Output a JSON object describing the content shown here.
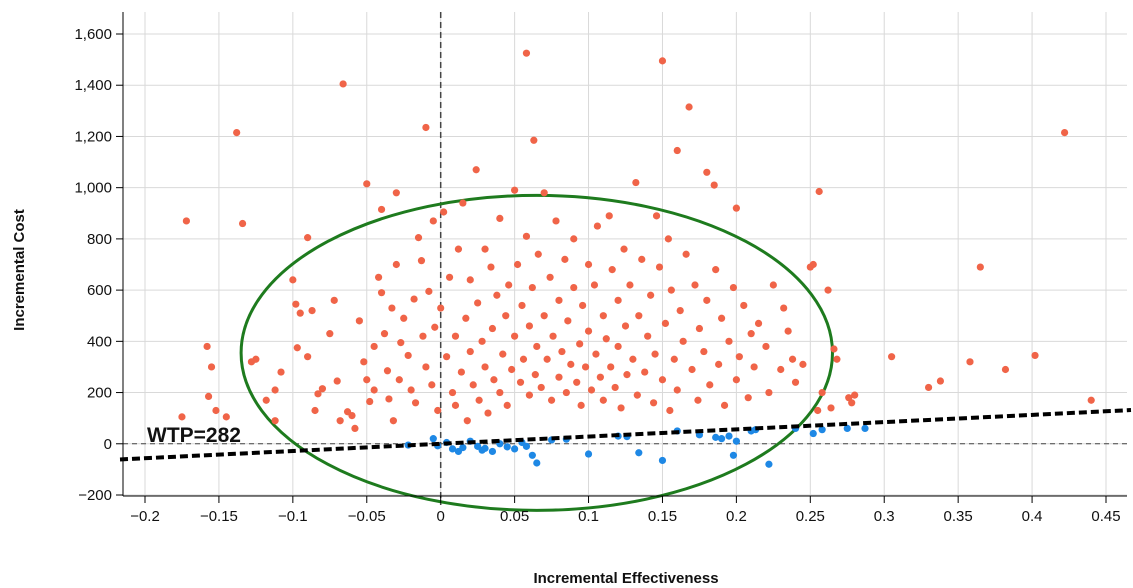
{
  "chart_data": {
    "type": "scatter",
    "title": "",
    "xlabel": "Incremental Effectiveness",
    "ylabel": "Incremental Cost",
    "xlim": [
      -0.2,
      0.45
    ],
    "ylim": [
      -200,
      1600
    ],
    "x_ticks": [
      -0.2,
      -0.15,
      -0.1,
      -0.05,
      0,
      0.05,
      0.1,
      0.15,
      0.2,
      0.25,
      0.3,
      0.35,
      0.4,
      0.45
    ],
    "x_tick_labels": [
      "−0.2",
      "−0.15",
      "−0.1",
      "−0.05",
      "0",
      "0.05",
      "0.1",
      "0.15",
      "0.2",
      "0.25",
      "0.3",
      "0.35",
      "0.4",
      "0.45"
    ],
    "y_ticks": [
      -200,
      0,
      200,
      400,
      600,
      800,
      1000,
      1200,
      1400,
      1600
    ],
    "y_tick_labels": [
      "−200",
      "0",
      "200",
      "400",
      "600",
      "800",
      "1,000",
      "1,200",
      "1,400",
      "1,600"
    ],
    "grid": true,
    "wtp": {
      "label": "WTP=282",
      "slope": 282,
      "x_range": [
        -0.2,
        0.45
      ]
    },
    "confidence_ellipse": {
      "center": [
        0.065,
        355
      ],
      "semi_axes": [
        0.2,
        615
      ],
      "color": "#1e7b1e"
    },
    "colors": {
      "above_wtp": "#f06448",
      "below_wtp": "#1e88e5",
      "grid": "#d9d9d9",
      "wtp_line": "#000000",
      "zero_lines": "#444444"
    },
    "series": [
      {
        "color_key": "above_wtp",
        "points": [
          [
            -0.172,
            870
          ],
          [
            -0.175,
            105
          ],
          [
            -0.158,
            380
          ],
          [
            -0.155,
            300
          ],
          [
            -0.157,
            185
          ],
          [
            -0.152,
            130
          ],
          [
            -0.145,
            105
          ],
          [
            -0.138,
            1215
          ],
          [
            -0.134,
            860
          ],
          [
            -0.128,
            320
          ],
          [
            -0.125,
            330
          ],
          [
            -0.118,
            170
          ],
          [
            -0.112,
            210
          ],
          [
            -0.112,
            90
          ],
          [
            -0.108,
            280
          ],
          [
            -0.1,
            640
          ],
          [
            -0.098,
            545
          ],
          [
            -0.097,
            375
          ],
          [
            -0.095,
            510
          ],
          [
            -0.09,
            805
          ],
          [
            -0.09,
            340
          ],
          [
            -0.087,
            520
          ],
          [
            -0.085,
            130
          ],
          [
            -0.083,
            195
          ],
          [
            -0.08,
            215
          ],
          [
            -0.075,
            430
          ],
          [
            -0.072,
            560
          ],
          [
            -0.07,
            245
          ],
          [
            -0.068,
            90
          ],
          [
            -0.066,
            1405
          ],
          [
            -0.063,
            125
          ],
          [
            -0.06,
            110
          ],
          [
            -0.058,
            60
          ],
          [
            -0.055,
            480
          ],
          [
            -0.052,
            320
          ],
          [
            -0.05,
            1015
          ],
          [
            -0.05,
            250
          ],
          [
            -0.048,
            165
          ],
          [
            -0.045,
            210
          ],
          [
            -0.045,
            380
          ],
          [
            -0.042,
            650
          ],
          [
            -0.04,
            590
          ],
          [
            -0.04,
            915
          ],
          [
            -0.038,
            430
          ],
          [
            -0.036,
            285
          ],
          [
            -0.035,
            175
          ],
          [
            -0.033,
            530
          ],
          [
            -0.032,
            90
          ],
          [
            -0.03,
            980
          ],
          [
            -0.03,
            700
          ],
          [
            -0.028,
            250
          ],
          [
            -0.027,
            395
          ],
          [
            -0.025,
            490
          ],
          [
            -0.022,
            345
          ],
          [
            -0.02,
            210
          ],
          [
            -0.018,
            565
          ],
          [
            -0.017,
            160
          ],
          [
            -0.015,
            805
          ],
          [
            -0.013,
            715
          ],
          [
            -0.012,
            420
          ],
          [
            -0.01,
            1235
          ],
          [
            -0.01,
            300
          ],
          [
            -0.008,
            595
          ],
          [
            -0.006,
            230
          ],
          [
            -0.005,
            870
          ],
          [
            -0.004,
            455
          ],
          [
            -0.002,
            130
          ],
          [
            0.0,
            530
          ],
          [
            0.002,
            905
          ],
          [
            0.004,
            340
          ],
          [
            0.006,
            650
          ],
          [
            0.008,
            200
          ],
          [
            0.01,
            420
          ],
          [
            0.01,
            150
          ],
          [
            0.012,
            760
          ],
          [
            0.014,
            280
          ],
          [
            0.015,
            940
          ],
          [
            0.017,
            490
          ],
          [
            0.018,
            90
          ],
          [
            0.02,
            360
          ],
          [
            0.02,
            640
          ],
          [
            0.022,
            230
          ],
          [
            0.024,
            1070
          ],
          [
            0.025,
            550
          ],
          [
            0.026,
            170
          ],
          [
            0.028,
            400
          ],
          [
            0.03,
            760
          ],
          [
            0.03,
            300
          ],
          [
            0.032,
            120
          ],
          [
            0.034,
            690
          ],
          [
            0.035,
            450
          ],
          [
            0.036,
            250
          ],
          [
            0.038,
            580
          ],
          [
            0.04,
            200
          ],
          [
            0.04,
            880
          ],
          [
            0.042,
            350
          ],
          [
            0.044,
            500
          ],
          [
            0.045,
            150
          ],
          [
            0.046,
            620
          ],
          [
            0.048,
            290
          ],
          [
            0.05,
            990
          ],
          [
            0.05,
            420
          ],
          [
            0.052,
            700
          ],
          [
            0.054,
            240
          ],
          [
            0.055,
            540
          ],
          [
            0.056,
            330
          ],
          [
            0.058,
            1525
          ],
          [
            0.058,
            810
          ],
          [
            0.06,
            190
          ],
          [
            0.06,
            460
          ],
          [
            0.062,
            610
          ],
          [
            0.063,
            1185
          ],
          [
            0.064,
            270
          ],
          [
            0.065,
            380
          ],
          [
            0.066,
            740
          ],
          [
            0.068,
            220
          ],
          [
            0.07,
            980
          ],
          [
            0.07,
            500
          ],
          [
            0.072,
            330
          ],
          [
            0.074,
            650
          ],
          [
            0.075,
            170
          ],
          [
            0.076,
            420
          ],
          [
            0.078,
            870
          ],
          [
            0.08,
            260
          ],
          [
            0.08,
            560
          ],
          [
            0.082,
            360
          ],
          [
            0.084,
            720
          ],
          [
            0.085,
            200
          ],
          [
            0.086,
            480
          ],
          [
            0.088,
            310
          ],
          [
            0.09,
            800
          ],
          [
            0.09,
            610
          ],
          [
            0.092,
            240
          ],
          [
            0.094,
            390
          ],
          [
            0.095,
            150
          ],
          [
            0.096,
            540
          ],
          [
            0.098,
            300
          ],
          [
            0.1,
            700
          ],
          [
            0.1,
            440
          ],
          [
            0.102,
            210
          ],
          [
            0.104,
            620
          ],
          [
            0.105,
            350
          ],
          [
            0.106,
            850
          ],
          [
            0.108,
            260
          ],
          [
            0.11,
            500
          ],
          [
            0.11,
            170
          ],
          [
            0.112,
            410
          ],
          [
            0.114,
            890
          ],
          [
            0.115,
            300
          ],
          [
            0.116,
            680
          ],
          [
            0.118,
            220
          ],
          [
            0.12,
            560
          ],
          [
            0.12,
            380
          ],
          [
            0.122,
            140
          ],
          [
            0.124,
            760
          ],
          [
            0.125,
            460
          ],
          [
            0.126,
            270
          ],
          [
            0.128,
            620
          ],
          [
            0.13,
            330
          ],
          [
            0.132,
            1020
          ],
          [
            0.133,
            190
          ],
          [
            0.134,
            500
          ],
          [
            0.136,
            720
          ],
          [
            0.138,
            280
          ],
          [
            0.14,
            420
          ],
          [
            0.142,
            580
          ],
          [
            0.144,
            160
          ],
          [
            0.145,
            350
          ],
          [
            0.146,
            890
          ],
          [
            0.148,
            690
          ],
          [
            0.15,
            1495
          ],
          [
            0.15,
            250
          ],
          [
            0.152,
            470
          ],
          [
            0.154,
            800
          ],
          [
            0.155,
            130
          ],
          [
            0.156,
            600
          ],
          [
            0.158,
            330
          ],
          [
            0.16,
            1145
          ],
          [
            0.16,
            210
          ],
          [
            0.162,
            520
          ],
          [
            0.164,
            400
          ],
          [
            0.166,
            740
          ],
          [
            0.168,
            1315
          ],
          [
            0.17,
            290
          ],
          [
            0.172,
            620
          ],
          [
            0.174,
            170
          ],
          [
            0.175,
            450
          ],
          [
            0.178,
            360
          ],
          [
            0.18,
            1060
          ],
          [
            0.18,
            560
          ],
          [
            0.182,
            230
          ],
          [
            0.185,
            1010
          ],
          [
            0.186,
            680
          ],
          [
            0.188,
            310
          ],
          [
            0.19,
            490
          ],
          [
            0.192,
            150
          ],
          [
            0.195,
            400
          ],
          [
            0.198,
            610
          ],
          [
            0.2,
            250
          ],
          [
            0.2,
            920
          ],
          [
            0.202,
            340
          ],
          [
            0.205,
            540
          ],
          [
            0.208,
            180
          ],
          [
            0.21,
            430
          ],
          [
            0.212,
            300
          ],
          [
            0.215,
            470
          ],
          [
            0.22,
            380
          ],
          [
            0.222,
            200
          ],
          [
            0.225,
            620
          ],
          [
            0.23,
            290
          ],
          [
            0.232,
            530
          ],
          [
            0.235,
            440
          ],
          [
            0.238,
            330
          ],
          [
            0.24,
            240
          ],
          [
            0.245,
            310
          ],
          [
            0.25,
            690
          ],
          [
            0.252,
            700
          ],
          [
            0.255,
            130
          ],
          [
            0.256,
            985
          ],
          [
            0.258,
            200
          ],
          [
            0.262,
            600
          ],
          [
            0.264,
            140
          ],
          [
            0.266,
            370
          ],
          [
            0.268,
            330
          ],
          [
            0.276,
            180
          ],
          [
            0.278,
            160
          ],
          [
            0.28,
            190
          ],
          [
            0.305,
            340
          ],
          [
            0.33,
            220
          ],
          [
            0.338,
            245
          ],
          [
            0.358,
            320
          ],
          [
            0.365,
            690
          ],
          [
            0.382,
            290
          ],
          [
            0.402,
            345
          ],
          [
            0.422,
            1215
          ],
          [
            0.44,
            170
          ]
        ]
      },
      {
        "color_key": "below_wtp",
        "points": [
          [
            -0.022,
            -5
          ],
          [
            -0.005,
            20
          ],
          [
            -0.002,
            -8
          ],
          [
            0.004,
            5
          ],
          [
            0.008,
            -20
          ],
          [
            0.012,
            -30
          ],
          [
            0.015,
            -15
          ],
          [
            0.02,
            10
          ],
          [
            0.025,
            -10
          ],
          [
            0.028,
            -25
          ],
          [
            0.03,
            -18
          ],
          [
            0.035,
            -30
          ],
          [
            0.04,
            0
          ],
          [
            0.045,
            -12
          ],
          [
            0.05,
            -20
          ],
          [
            0.055,
            5
          ],
          [
            0.058,
            -10
          ],
          [
            0.062,
            -45
          ],
          [
            0.065,
            -75
          ],
          [
            0.075,
            15
          ],
          [
            0.085,
            18
          ],
          [
            0.1,
            -40
          ],
          [
            0.12,
            30
          ],
          [
            0.126,
            28
          ],
          [
            0.134,
            -35
          ],
          [
            0.15,
            -65
          ],
          [
            0.16,
            50
          ],
          [
            0.175,
            35
          ],
          [
            0.186,
            25
          ],
          [
            0.19,
            20
          ],
          [
            0.195,
            30
          ],
          [
            0.198,
            -45
          ],
          [
            0.2,
            10
          ],
          [
            0.21,
            50
          ],
          [
            0.213,
            55
          ],
          [
            0.222,
            -80
          ],
          [
            0.24,
            60
          ],
          [
            0.252,
            40
          ],
          [
            0.258,
            55
          ],
          [
            0.275,
            60
          ],
          [
            0.287,
            60
          ]
        ]
      }
    ]
  }
}
